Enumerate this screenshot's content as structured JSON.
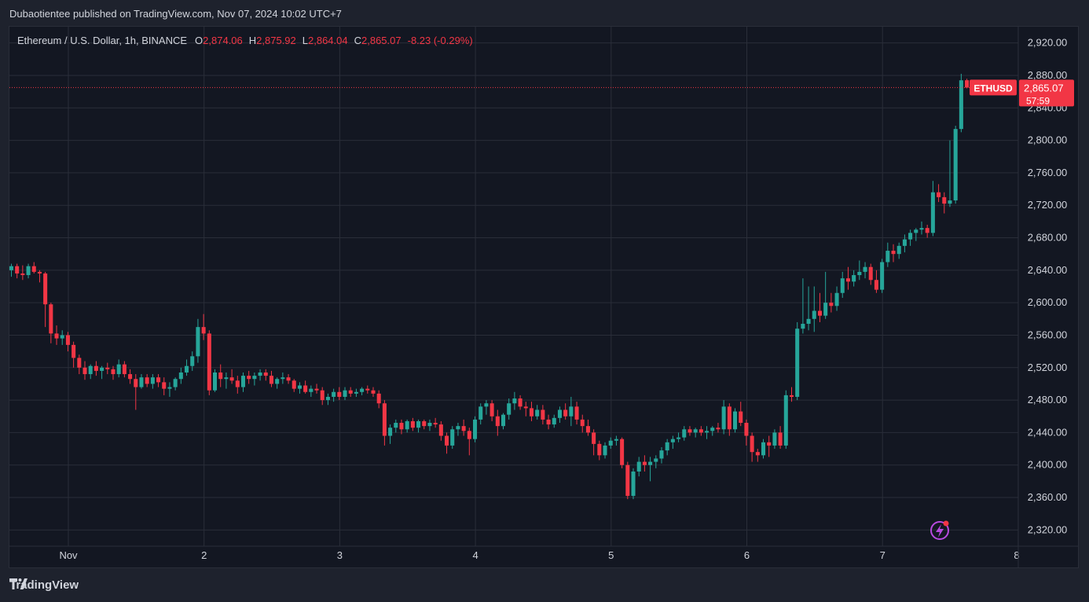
{
  "header": {
    "publisher": "Dubaotientee published on TradingView.com, Nov 07, 2024 10:02 UTC+7"
  },
  "legend": {
    "symbol": "Ethereum / U.S. Dollar, 1h, BINANCE",
    "o_label": "O",
    "o": "2,874.06",
    "h_label": "H",
    "h": "2,875.92",
    "l_label": "L",
    "l": "2,864.04",
    "c_label": "C",
    "c": "2,865.07",
    "change": "-8.23 (-0.29%)"
  },
  "price_tag": {
    "ticker": "ETHUSD",
    "price": "2,865.07",
    "countdown": "57:59"
  },
  "footer": {
    "brand": "TradingView"
  },
  "colors": {
    "up": "#26a69a",
    "down": "#f23645",
    "background": "#131722",
    "grid": "#2a2e39",
    "accent_icon": "#b84ae0"
  },
  "icons": [
    "tradingview-logo-icon",
    "lightning-icon"
  ],
  "chart_data": {
    "type": "candlestick",
    "title": "Ethereum / U.S. Dollar, 1h, BINANCE",
    "xlabel": "",
    "ylabel": "",
    "ylim": [
      2300,
      2940
    ],
    "y_ticks": [
      "2,920.00",
      "2,880.00",
      "2,840.00",
      "2,800.00",
      "2,760.00",
      "2,720.00",
      "2,680.00",
      "2,640.00",
      "2,600.00",
      "2,560.00",
      "2,520.00",
      "2,480.00",
      "2,440.00",
      "2,400.00",
      "2,360.00",
      "2,320.00"
    ],
    "y_tick_values": [
      2920,
      2880,
      2840,
      2800,
      2760,
      2720,
      2680,
      2640,
      2600,
      2560,
      2520,
      2480,
      2440,
      2400,
      2360,
      2320
    ],
    "x_ticks": [
      "Nov",
      "2",
      "3",
      "4",
      "5",
      "6",
      "7",
      "8"
    ],
    "x_tick_values": [
      1,
      2,
      3,
      4,
      5,
      6,
      7,
      8
    ],
    "x_unit": "day (Nov)",
    "x_start_day": 0.58,
    "bar_hours": 1,
    "last_price": 2865.07,
    "grid": true,
    "candles": [
      [
        2640,
        2648,
        2632,
        2645
      ],
      [
        2645,
        2648,
        2630,
        2636
      ],
      [
        2636,
        2646,
        2628,
        2634
      ],
      [
        2634,
        2648,
        2630,
        2645
      ],
      [
        2645,
        2650,
        2636,
        2638
      ],
      [
        2638,
        2640,
        2625,
        2636
      ],
      [
        2636,
        2638,
        2570,
        2598
      ],
      [
        2598,
        2600,
        2550,
        2562
      ],
      [
        2562,
        2572,
        2548,
        2556
      ],
      [
        2556,
        2566,
        2548,
        2560
      ],
      [
        2560,
        2564,
        2540,
        2548
      ],
      [
        2548,
        2552,
        2520,
        2532
      ],
      [
        2532,
        2536,
        2512,
        2520
      ],
      [
        2520,
        2528,
        2505,
        2512
      ],
      [
        2512,
        2524,
        2506,
        2522
      ],
      [
        2522,
        2528,
        2510,
        2516
      ],
      [
        2516,
        2522,
        2506,
        2520
      ],
      [
        2520,
        2526,
        2512,
        2518
      ],
      [
        2518,
        2522,
        2505,
        2512
      ],
      [
        2512,
        2530,
        2508,
        2524
      ],
      [
        2524,
        2528,
        2508,
        2512
      ],
      [
        2512,
        2518,
        2500,
        2506
      ],
      [
        2506,
        2512,
        2468,
        2496
      ],
      [
        2496,
        2512,
        2494,
        2508
      ],
      [
        2508,
        2512,
        2496,
        2500
      ],
      [
        2500,
        2512,
        2494,
        2508
      ],
      [
        2508,
        2512,
        2496,
        2502
      ],
      [
        2502,
        2508,
        2486,
        2494
      ],
      [
        2494,
        2502,
        2484,
        2496
      ],
      [
        2496,
        2508,
        2492,
        2506
      ],
      [
        2506,
        2520,
        2500,
        2514
      ],
      [
        2514,
        2530,
        2510,
        2522
      ],
      [
        2522,
        2540,
        2516,
        2534
      ],
      [
        2534,
        2580,
        2526,
        2570
      ],
      [
        2570,
        2586,
        2554,
        2562
      ],
      [
        2562,
        2566,
        2486,
        2492
      ],
      [
        2492,
        2518,
        2490,
        2514
      ],
      [
        2514,
        2524,
        2496,
        2506
      ],
      [
        2506,
        2514,
        2494,
        2508
      ],
      [
        2508,
        2518,
        2500,
        2504
      ],
      [
        2504,
        2510,
        2488,
        2496
      ],
      [
        2496,
        2514,
        2490,
        2510
      ],
      [
        2510,
        2516,
        2500,
        2506
      ],
      [
        2506,
        2514,
        2498,
        2510
      ],
      [
        2510,
        2518,
        2504,
        2514
      ],
      [
        2514,
        2518,
        2504,
        2510
      ],
      [
        2510,
        2516,
        2496,
        2500
      ],
      [
        2500,
        2508,
        2494,
        2506
      ],
      [
        2506,
        2514,
        2500,
        2508
      ],
      [
        2508,
        2512,
        2500,
        2504
      ],
      [
        2504,
        2506,
        2490,
        2494
      ],
      [
        2494,
        2502,
        2488,
        2498
      ],
      [
        2498,
        2504,
        2488,
        2490
      ],
      [
        2490,
        2498,
        2484,
        2494
      ],
      [
        2494,
        2500,
        2488,
        2492
      ],
      [
        2492,
        2496,
        2474,
        2480
      ],
      [
        2480,
        2488,
        2474,
        2484
      ],
      [
        2484,
        2494,
        2478,
        2490
      ],
      [
        2490,
        2496,
        2480,
        2484
      ],
      [
        2484,
        2496,
        2480,
        2492
      ],
      [
        2492,
        2496,
        2484,
        2488
      ],
      [
        2488,
        2494,
        2484,
        2490
      ],
      [
        2490,
        2496,
        2486,
        2494
      ],
      [
        2494,
        2498,
        2488,
        2492
      ],
      [
        2492,
        2496,
        2484,
        2488
      ],
      [
        2488,
        2492,
        2470,
        2476
      ],
      [
        2476,
        2480,
        2424,
        2436
      ],
      [
        2436,
        2450,
        2426,
        2446
      ],
      [
        2446,
        2456,
        2440,
        2452
      ],
      [
        2452,
        2456,
        2438,
        2444
      ],
      [
        2444,
        2456,
        2440,
        2454
      ],
      [
        2454,
        2458,
        2442,
        2446
      ],
      [
        2446,
        2456,
        2440,
        2454
      ],
      [
        2454,
        2456,
        2444,
        2448
      ],
      [
        2448,
        2456,
        2442,
        2452
      ],
      [
        2452,
        2458,
        2446,
        2450
      ],
      [
        2450,
        2454,
        2430,
        2436
      ],
      [
        2436,
        2440,
        2414,
        2424
      ],
      [
        2424,
        2448,
        2420,
        2444
      ],
      [
        2444,
        2452,
        2436,
        2448
      ],
      [
        2448,
        2456,
        2436,
        2442
      ],
      [
        2442,
        2446,
        2412,
        2432
      ],
      [
        2432,
        2460,
        2428,
        2456
      ],
      [
        2456,
        2476,
        2450,
        2472
      ],
      [
        2472,
        2480,
        2462,
        2476
      ],
      [
        2476,
        2480,
        2454,
        2460
      ],
      [
        2460,
        2468,
        2436,
        2448
      ],
      [
        2448,
        2464,
        2444,
        2462
      ],
      [
        2462,
        2482,
        2456,
        2476
      ],
      [
        2476,
        2490,
        2468,
        2482
      ],
      [
        2482,
        2486,
        2468,
        2472
      ],
      [
        2472,
        2478,
        2460,
        2470
      ],
      [
        2470,
        2478,
        2454,
        2460
      ],
      [
        2460,
        2474,
        2456,
        2468
      ],
      [
        2468,
        2474,
        2450,
        2456
      ],
      [
        2456,
        2462,
        2444,
        2450
      ],
      [
        2450,
        2462,
        2446,
        2458
      ],
      [
        2458,
        2472,
        2452,
        2468
      ],
      [
        2468,
        2476,
        2456,
        2460
      ],
      [
        2460,
        2484,
        2448,
        2472
      ],
      [
        2472,
        2478,
        2450,
        2456
      ],
      [
        2456,
        2462,
        2440,
        2448
      ],
      [
        2448,
        2456,
        2436,
        2440
      ],
      [
        2440,
        2444,
        2412,
        2426
      ],
      [
        2426,
        2430,
        2406,
        2412
      ],
      [
        2412,
        2428,
        2408,
        2424
      ],
      [
        2424,
        2434,
        2420,
        2430
      ],
      [
        2430,
        2436,
        2424,
        2432
      ],
      [
        2432,
        2434,
        2396,
        2400
      ],
      [
        2400,
        2404,
        2358,
        2362
      ],
      [
        2362,
        2396,
        2358,
        2392
      ],
      [
        2392,
        2410,
        2386,
        2404
      ],
      [
        2404,
        2412,
        2392,
        2400
      ],
      [
        2400,
        2410,
        2380,
        2404
      ],
      [
        2404,
        2412,
        2396,
        2408
      ],
      [
        2408,
        2422,
        2402,
        2418
      ],
      [
        2418,
        2432,
        2412,
        2428
      ],
      [
        2428,
        2436,
        2420,
        2432
      ],
      [
        2432,
        2440,
        2428,
        2434
      ],
      [
        2434,
        2448,
        2430,
        2444
      ],
      [
        2444,
        2448,
        2436,
        2440
      ],
      [
        2440,
        2446,
        2434,
        2444
      ],
      [
        2444,
        2448,
        2436,
        2440
      ],
      [
        2440,
        2448,
        2432,
        2442
      ],
      [
        2442,
        2448,
        2436,
        2446
      ],
      [
        2446,
        2452,
        2440,
        2444
      ],
      [
        2444,
        2480,
        2438,
        2472
      ],
      [
        2472,
        2476,
        2436,
        2444
      ],
      [
        2444,
        2470,
        2440,
        2466
      ],
      [
        2466,
        2478,
        2448,
        2452
      ],
      [
        2452,
        2456,
        2424,
        2436
      ],
      [
        2436,
        2440,
        2404,
        2416
      ],
      [
        2416,
        2420,
        2404,
        2412
      ],
      [
        2412,
        2432,
        2408,
        2428
      ],
      [
        2428,
        2436,
        2410,
        2424
      ],
      [
        2424,
        2444,
        2420,
        2440
      ],
      [
        2440,
        2448,
        2420,
        2424
      ],
      [
        2424,
        2492,
        2420,
        2486
      ],
      [
        2486,
        2496,
        2478,
        2484
      ],
      [
        2484,
        2576,
        2480,
        2568
      ],
      [
        2568,
        2630,
        2562,
        2574
      ],
      [
        2574,
        2620,
        2566,
        2580
      ],
      [
        2580,
        2620,
        2564,
        2590
      ],
      [
        2590,
        2612,
        2576,
        2584
      ],
      [
        2584,
        2638,
        2580,
        2600
      ],
      [
        2600,
        2612,
        2588,
        2596
      ],
      [
        2596,
        2620,
        2590,
        2612
      ],
      [
        2612,
        2638,
        2606,
        2630
      ],
      [
        2630,
        2644,
        2616,
        2626
      ],
      [
        2626,
        2640,
        2620,
        2634
      ],
      [
        2634,
        2652,
        2628,
        2638
      ],
      [
        2638,
        2650,
        2630,
        2644
      ],
      [
        2644,
        2648,
        2622,
        2628
      ],
      [
        2628,
        2640,
        2612,
        2616
      ],
      [
        2616,
        2654,
        2612,
        2650
      ],
      [
        2650,
        2674,
        2644,
        2664
      ],
      [
        2664,
        2672,
        2650,
        2660
      ],
      [
        2660,
        2674,
        2654,
        2670
      ],
      [
        2670,
        2684,
        2662,
        2678
      ],
      [
        2678,
        2690,
        2670,
        2686
      ],
      [
        2686,
        2692,
        2676,
        2690
      ],
      [
        2690,
        2700,
        2684,
        2692
      ],
      [
        2692,
        2696,
        2680,
        2686
      ],
      [
        2686,
        2750,
        2682,
        2736
      ],
      [
        2736,
        2746,
        2724,
        2730
      ],
      [
        2730,
        2736,
        2710,
        2722
      ],
      [
        2722,
        2800,
        2718,
        2726
      ],
      [
        2726,
        2818,
        2722,
        2814
      ],
      [
        2814,
        2882,
        2810,
        2874
      ],
      [
        2874.06,
        2875.92,
        2864.04,
        2865.07
      ]
    ]
  }
}
